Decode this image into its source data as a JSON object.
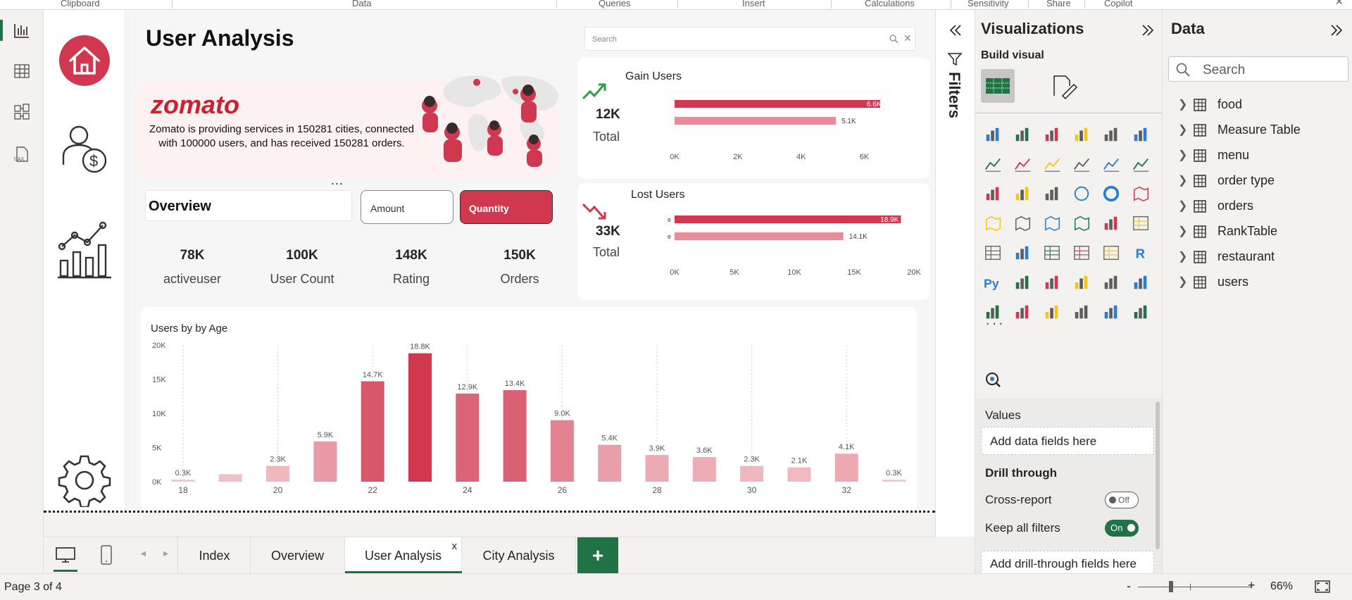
{
  "ribbon": {
    "groups": [
      "Clipboard",
      "Data",
      "Queries",
      "Insert",
      "Calculations",
      "Sensitivity",
      "Share",
      "Copilot"
    ]
  },
  "report": {
    "title": "User Analysis",
    "brand": "zomato",
    "description": "Zomato is providing services in 150281 cities, connected with 100000 users, and has received 150281 orders.",
    "search_placeholder": "Search",
    "ellipsis": "...",
    "overview": {
      "label": "Overview",
      "amount": "Amount",
      "quantity": "Quantity"
    },
    "kpis": [
      {
        "value": "78K",
        "label": "activeuser"
      },
      {
        "value": "100K",
        "label": "User Count"
      },
      {
        "value": "148K",
        "label": "Rating"
      },
      {
        "value": "150K",
        "label": "Orders"
      }
    ],
    "gain": {
      "title": "Gain Users",
      "value": "12K",
      "total": "Total"
    },
    "lost": {
      "title": "Lost Users",
      "value": "33K",
      "total": "Total"
    }
  },
  "chart_data": [
    {
      "type": "bar",
      "title": "Gain Users",
      "categories": [
        "",
        ""
      ],
      "values": [
        6600,
        5100
      ],
      "data_labels": [
        "6.6K",
        "5.1K"
      ],
      "xticks": [
        "0K",
        "2K",
        "4K",
        "6K"
      ],
      "xlim": [
        0,
        6500
      ]
    },
    {
      "type": "bar",
      "title": "Lost Users",
      "categories": [
        "e",
        "e"
      ],
      "values": [
        18900,
        14100
      ],
      "data_labels": [
        "18.9K",
        "14.1K"
      ],
      "xticks": [
        "0K",
        "5K",
        "10K",
        "15K",
        "20K"
      ],
      "xlim": [
        0,
        20000
      ]
    },
    {
      "type": "bar",
      "title": "Users by by Age",
      "categories": [
        "18",
        "19",
        "20",
        "21",
        "22",
        "23",
        "24",
        "25",
        "26",
        "27",
        "28",
        "29",
        "30",
        "31",
        "32",
        "33"
      ],
      "xtick_labels": [
        "18",
        "",
        "20",
        "",
        "22",
        "",
        "24",
        "",
        "26",
        "",
        "28",
        "",
        "30",
        "",
        "32",
        ""
      ],
      "values": [
        300,
        1100,
        2300,
        5900,
        14700,
        18800,
        12900,
        13400,
        9000,
        5400,
        3900,
        3600,
        2300,
        2100,
        4100,
        300
      ],
      "data_labels": [
        "0.3K",
        "",
        "2.3K",
        "5.9K",
        "14.7K",
        "18.8K",
        "12.9K",
        "13.4K",
        "9.0K",
        "5.4K",
        "3.9K",
        "3.6K",
        "2.3K",
        "2.1K",
        "4.1K",
        "0.3K"
      ],
      "yticks": [
        "0K",
        "5K",
        "10K",
        "15K",
        "20K"
      ],
      "ylim": [
        0,
        20000
      ],
      "colors": {
        "max": "#d0384f",
        "min": "#f3c6cc"
      }
    }
  ],
  "filters": {
    "label": "Filters"
  },
  "visualizations": {
    "title": "Visualizations",
    "build_visual": "Build visual",
    "values_label": "Values",
    "values_placeholder": "Add data fields here",
    "drill_through": "Drill through",
    "cross_report": "Cross-report",
    "cross_report_state": "Off",
    "keep_filters": "Keep all filters",
    "keep_filters_state": "On",
    "drill_placeholder": "Add drill-through fields here",
    "more": "···",
    "r_label": "R",
    "py_label": "Py"
  },
  "data_pane": {
    "title": "Data",
    "search_placeholder": "Search",
    "tables": [
      "food",
      "Measure Table",
      "menu",
      "order type",
      "orders",
      "RankTable",
      "restaurant",
      "users"
    ]
  },
  "tabs": [
    "Index",
    "Overview",
    "User Analysis",
    "City Analysis"
  ],
  "active_tab": "User Analysis",
  "add_tab": "+",
  "close_tab": "x",
  "status": {
    "page": "Page 3 of 4",
    "zoom": "66%",
    "minus": "-",
    "plus": "+"
  },
  "colors": {
    "accent": "#d0384f",
    "brand": "#cb202d",
    "green": "#217346"
  }
}
